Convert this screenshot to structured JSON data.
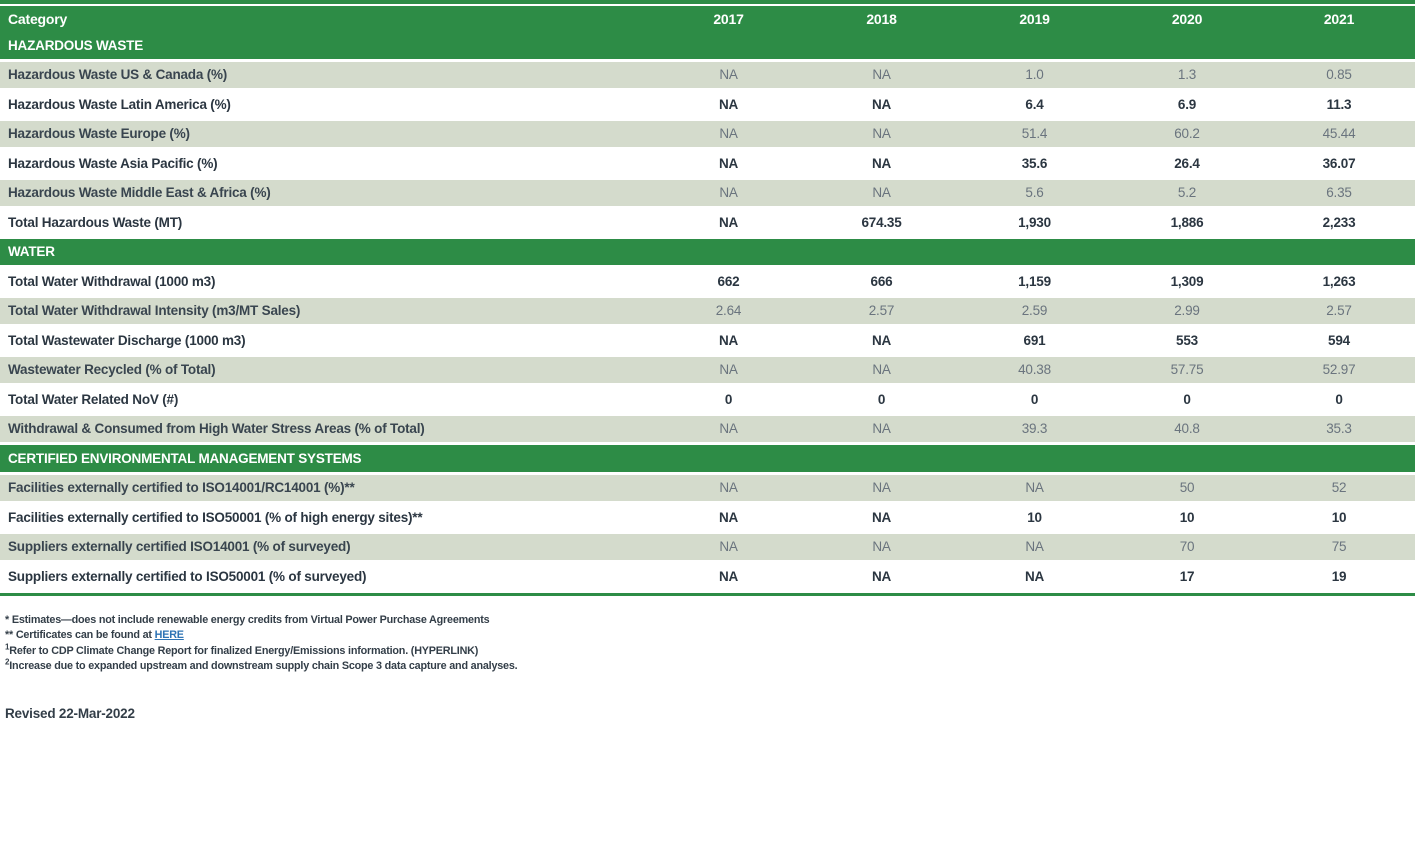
{
  "colors": {
    "green": "#2D8C46",
    "row_shade": "#D4DBCC",
    "link_blue": "#2E74B5",
    "header_text": "#FFFFFF",
    "label_text": "#2B3641",
    "shaded_value_text": "#6A747E"
  },
  "table": {
    "columns": [
      "Category",
      "2017",
      "2018",
      "2019",
      "2020",
      "2021"
    ],
    "sections": [
      {
        "title": "HAZARDOUS WASTE",
        "rows": [
          {
            "label": "Hazardous Waste US & Canada (%)",
            "values": [
              "NA",
              "NA",
              "1.0",
              "1.3",
              "0.85"
            ]
          },
          {
            "label": "Hazardous Waste Latin America (%)",
            "values": [
              "NA",
              "NA",
              "6.4",
              "6.9",
              "11.3"
            ]
          },
          {
            "label": "Hazardous Waste Europe (%)",
            "values": [
              "NA",
              "NA",
              "51.4",
              "60.2",
              "45.44"
            ]
          },
          {
            "label": "Hazardous Waste Asia Pacific (%)",
            "values": [
              "NA",
              "NA",
              "35.6",
              "26.4",
              "36.07"
            ]
          },
          {
            "label": "Hazardous Waste Middle East & Africa (%)",
            "values": [
              "NA",
              "NA",
              "5.6",
              "5.2",
              "6.35"
            ]
          },
          {
            "label": "Total Hazardous Waste (MT)",
            "values": [
              "NA",
              "674.35",
              "1,930",
              "1,886",
              "2,233"
            ]
          }
        ]
      },
      {
        "title": "WATER",
        "rows": [
          {
            "label": "Total Water Withdrawal (1000 m3)",
            "values": [
              "662",
              "666",
              "1,159",
              "1,309",
              "1,263"
            ]
          },
          {
            "label": "Total Water Withdrawal Intensity (m3/MT Sales)",
            "values": [
              "2.64",
              "2.57",
              "2.59",
              "2.99",
              "2.57"
            ]
          },
          {
            "label": "Total Wastewater Discharge (1000 m3)",
            "values": [
              "NA",
              "NA",
              "691",
              "553",
              "594"
            ]
          },
          {
            "label": "Wastewater Recycled (% of Total)",
            "values": [
              "NA",
              "NA",
              "40.38",
              "57.75",
              "52.97"
            ]
          },
          {
            "label": "Total Water Related NoV (#)",
            "values": [
              "0",
              "0",
              "0",
              "0",
              "0"
            ]
          },
          {
            "label": "Withdrawal & Consumed from High Water Stress Areas (% of Total)",
            "values": [
              "NA",
              "NA",
              "39.3",
              "40.8",
              "35.3"
            ]
          }
        ]
      },
      {
        "title": "CERTIFIED ENVIRONMENTAL MANAGEMENT SYSTEMS",
        "rows": [
          {
            "label": "Facilities externally certified to ISO14001/RC14001 (%)**",
            "values": [
              "NA",
              "NA",
              "NA",
              "50",
              "52"
            ]
          },
          {
            "label": "Facilities externally certified to ISO50001 (% of high energy sites)**",
            "values": [
              "NA",
              "NA",
              "10",
              "10",
              "10"
            ]
          },
          {
            "label": "Suppliers externally certified ISO14001 (% of surveyed)",
            "values": [
              "NA",
              "NA",
              "NA",
              "70",
              "75"
            ]
          },
          {
            "label": "Suppliers externally certified to ISO50001 (% of surveyed)",
            "values": [
              "NA",
              "NA",
              "NA",
              "17",
              "19"
            ]
          }
        ]
      }
    ]
  },
  "footnotes": [
    {
      "marker": "* ",
      "sup": false,
      "text": "Estimates—does not include renewable energy credits from Virtual Power Purchase Agreements",
      "link": ""
    },
    {
      "marker": "** ",
      "sup": false,
      "text": "Certificates can be found at ",
      "link": "HERE"
    },
    {
      "marker": "1",
      "sup": true,
      "text": "Refer to CDP Climate Change Report for finalized Energy/Emissions information. (HYPERLINK)",
      "link": ""
    },
    {
      "marker": "2",
      "sup": true,
      "text": "Increase due to expanded upstream and downstream supply chain Scope 3 data capture and analyses.",
      "link": ""
    }
  ],
  "revised": "Revised 22-Mar-2022"
}
